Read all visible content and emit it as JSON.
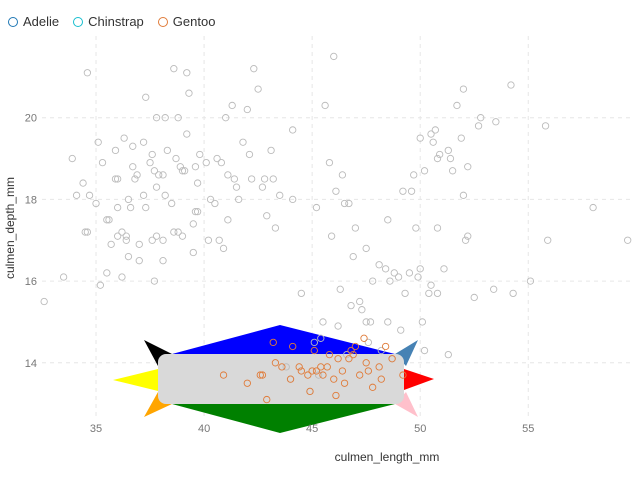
{
  "legend": {
    "items": [
      {
        "label": "Adelie",
        "color": "#1f77b4"
      },
      {
        "label": "Chinstrap",
        "color": "#17becf"
      },
      {
        "label": "Gentoo",
        "color": "#e07b39"
      }
    ]
  },
  "chart_data": {
    "type": "scatter",
    "xlabel": "culmen_length_mm",
    "ylabel": "culmen_depth_mm",
    "xlim": [
      32.5,
      59.8
    ],
    "ylim": [
      12.6,
      22.0
    ],
    "xticks": [
      35,
      40,
      45,
      50,
      55
    ],
    "yticks": [
      14,
      16,
      18,
      20
    ],
    "grid": true,
    "legend_position": "top-left",
    "point_color_other": "#bbbbbb",
    "series": [
      {
        "name": "Adelie",
        "color": "#1f77b4",
        "marker": "open-circle"
      },
      {
        "name": "Chinstrap",
        "color": "#17becf",
        "marker": "open-circle"
      },
      {
        "name": "Gentoo",
        "color": "#e07b39",
        "marker": "open-circle"
      }
    ],
    "points_grey": [
      [
        32.6,
        15.5
      ],
      [
        33.5,
        16.1
      ],
      [
        33.9,
        19.0
      ],
      [
        34.1,
        18.1
      ],
      [
        34.4,
        18.4
      ],
      [
        34.5,
        17.2
      ],
      [
        34.6,
        21.1
      ],
      [
        34.6,
        17.2
      ],
      [
        34.7,
        18.1
      ],
      [
        35.0,
        17.9
      ],
      [
        35.1,
        19.4
      ],
      [
        35.2,
        15.9
      ],
      [
        35.3,
        18.9
      ],
      [
        35.5,
        16.2
      ],
      [
        35.5,
        17.5
      ],
      [
        35.6,
        17.5
      ],
      [
        35.7,
        16.9
      ],
      [
        35.9,
        19.2
      ],
      [
        35.9,
        18.5
      ],
      [
        36.0,
        17.8
      ],
      [
        36.0,
        17.1
      ],
      [
        36.0,
        18.5
      ],
      [
        36.2,
        16.1
      ],
      [
        36.2,
        17.2
      ],
      [
        36.3,
        19.5
      ],
      [
        36.4,
        17.1
      ],
      [
        36.4,
        17.0
      ],
      [
        36.5,
        18.0
      ],
      [
        36.5,
        16.6
      ],
      [
        36.6,
        17.8
      ],
      [
        36.7,
        19.3
      ],
      [
        36.7,
        18.8
      ],
      [
        36.8,
        18.5
      ],
      [
        36.9,
        18.6
      ],
      [
        37.0,
        16.9
      ],
      [
        37.0,
        16.5
      ],
      [
        37.2,
        18.1
      ],
      [
        37.2,
        19.4
      ],
      [
        37.3,
        20.5
      ],
      [
        37.3,
        17.8
      ],
      [
        37.5,
        18.9
      ],
      [
        37.6,
        19.1
      ],
      [
        37.6,
        17.0
      ],
      [
        37.7,
        18.7
      ],
      [
        37.7,
        16.0
      ],
      [
        37.8,
        18.3
      ],
      [
        37.8,
        20.0
      ],
      [
        37.8,
        17.1
      ],
      [
        37.9,
        18.6
      ],
      [
        38.1,
        18.6
      ],
      [
        38.1,
        17.0
      ],
      [
        38.1,
        16.5
      ],
      [
        38.2,
        18.1
      ],
      [
        38.2,
        20.0
      ],
      [
        38.3,
        19.2
      ],
      [
        38.5,
        17.9
      ],
      [
        38.6,
        21.2
      ],
      [
        38.6,
        17.2
      ],
      [
        38.7,
        19.0
      ],
      [
        38.8,
        17.2
      ],
      [
        38.8,
        20.0
      ],
      [
        38.9,
        18.8
      ],
      [
        39.0,
        17.1
      ],
      [
        39.0,
        18.7
      ],
      [
        39.1,
        18.7
      ],
      [
        39.2,
        19.6
      ],
      [
        39.2,
        21.1
      ],
      [
        39.3,
        20.6
      ],
      [
        39.5,
        17.4
      ],
      [
        39.5,
        16.7
      ],
      [
        39.6,
        18.8
      ],
      [
        39.6,
        17.7
      ],
      [
        39.7,
        18.4
      ],
      [
        39.7,
        17.7
      ],
      [
        39.8,
        19.1
      ],
      [
        40.1,
        18.9
      ],
      [
        40.2,
        17.0
      ],
      [
        40.3,
        18.0
      ],
      [
        40.5,
        17.9
      ],
      [
        40.6,
        19.0
      ],
      [
        40.7,
        17.0
      ],
      [
        40.8,
        18.9
      ],
      [
        40.9,
        16.8
      ],
      [
        41.0,
        20.0
      ],
      [
        41.1,
        17.5
      ],
      [
        41.1,
        18.6
      ],
      [
        41.3,
        20.3
      ],
      [
        41.4,
        18.5
      ],
      [
        41.5,
        18.3
      ],
      [
        41.6,
        18.0
      ],
      [
        41.8,
        19.4
      ],
      [
        42.0,
        20.2
      ],
      [
        42.1,
        19.1
      ],
      [
        42.2,
        18.5
      ],
      [
        42.3,
        21.2
      ],
      [
        42.5,
        20.7
      ],
      [
        42.7,
        18.3
      ],
      [
        42.8,
        18.5
      ],
      [
        42.9,
        17.6
      ],
      [
        43.1,
        19.2
      ],
      [
        43.2,
        18.5
      ],
      [
        43.3,
        17.3
      ],
      [
        43.5,
        18.1
      ],
      [
        44.1,
        19.7
      ],
      [
        44.1,
        18.0
      ],
      [
        45.8,
        18.9
      ],
      [
        45.6,
        20.3
      ],
      [
        46.0,
        21.5
      ],
      [
        45.2,
        17.8
      ],
      [
        46.4,
        18.6
      ],
      [
        47.0,
        17.3
      ],
      [
        46.7,
        17.9
      ],
      [
        46.9,
        16.6
      ],
      [
        47.5,
        16.8
      ],
      [
        45.9,
        17.1
      ],
      [
        46.1,
        18.2
      ],
      [
        49.7,
        18.6
      ],
      [
        50.0,
        19.5
      ],
      [
        51.3,
        19.2
      ],
      [
        52.7,
        19.8
      ],
      [
        50.5,
        19.6
      ],
      [
        49.2,
        18.2
      ],
      [
        50.9,
        19.1
      ],
      [
        52.0,
        18.1
      ],
      [
        51.7,
        20.3
      ],
      [
        50.8,
        19.0
      ],
      [
        48.5,
        17.5
      ],
      [
        52.8,
        20.0
      ],
      [
        49.6,
        18.2
      ],
      [
        50.7,
        19.7
      ],
      [
        50.6,
        19.4
      ],
      [
        51.4,
        19.0
      ],
      [
        52.2,
        18.8
      ],
      [
        46.5,
        17.9
      ],
      [
        54.2,
        20.8
      ],
      [
        55.8,
        19.8
      ],
      [
        51.5,
        18.7
      ],
      [
        53.5,
        19.9
      ],
      [
        49.8,
        17.3
      ],
      [
        50.2,
        18.7
      ],
      [
        48.1,
        16.4
      ],
      [
        52.0,
        20.7
      ],
      [
        45.4,
        14.6
      ],
      [
        45.5,
        15.0
      ],
      [
        46.2,
        14.9
      ],
      [
        47.3,
        15.3
      ],
      [
        48.7,
        14.1
      ],
      [
        49.1,
        14.8
      ],
      [
        49.5,
        16.2
      ],
      [
        50.0,
        16.3
      ],
      [
        50.5,
        15.9
      ],
      [
        51.1,
        16.3
      ],
      [
        52.5,
        15.6
      ],
      [
        53.4,
        15.8
      ],
      [
        54.3,
        15.7
      ],
      [
        55.1,
        16.0
      ],
      [
        59.6,
        17.0
      ],
      [
        58.0,
        17.8
      ],
      [
        55.9,
        17.0
      ],
      [
        52.1,
        17.0
      ],
      [
        49.0,
        16.1
      ],
      [
        48.4,
        16.3
      ],
      [
        47.8,
        16.0
      ],
      [
        46.8,
        15.4
      ],
      [
        47.6,
        14.5
      ],
      [
        44.9,
        13.3
      ],
      [
        48.2,
        14.3
      ],
      [
        49.3,
        15.7
      ],
      [
        50.4,
        15.7
      ],
      [
        50.1,
        15.0
      ],
      [
        48.8,
        16.2
      ],
      [
        45.3,
        13.7
      ],
      [
        44.0,
        13.6
      ],
      [
        46.3,
        15.8
      ],
      [
        47.2,
        15.5
      ],
      [
        48.6,
        16.0
      ],
      [
        50.8,
        15.7
      ],
      [
        43.8,
        13.9
      ],
      [
        44.5,
        15.7
      ],
      [
        45.1,
        14.5
      ],
      [
        51.3,
        14.2
      ],
      [
        48.5,
        15.0
      ],
      [
        46.6,
        14.2
      ],
      [
        49.9,
        16.1
      ],
      [
        47.5,
        15.0
      ],
      [
        50.2,
        14.3
      ],
      [
        47.7,
        15.0
      ],
      [
        50.8,
        17.3
      ],
      [
        52.2,
        17.1
      ],
      [
        51.9,
        19.5
      ]
    ],
    "points_gentoo": [
      [
        45.1,
        14.3
      ],
      [
        43.3,
        14.0
      ],
      [
        44.0,
        13.6
      ],
      [
        44.4,
        13.9
      ],
      [
        45.8,
        14.2
      ],
      [
        46.1,
        13.2
      ],
      [
        46.5,
        13.5
      ],
      [
        47.2,
        13.7
      ],
      [
        47.5,
        14.0
      ],
      [
        48.1,
        13.9
      ],
      [
        48.4,
        14.4
      ],
      [
        46.8,
        14.3
      ],
      [
        45.0,
        13.8
      ],
      [
        44.8,
        13.7
      ],
      [
        46.2,
        14.1
      ],
      [
        47.4,
        14.6
      ],
      [
        45.5,
        13.7
      ],
      [
        46.4,
        13.8
      ],
      [
        47.8,
        13.4
      ],
      [
        40.9,
        13.7
      ],
      [
        42.6,
        13.7
      ],
      [
        42.7,
        13.7
      ],
      [
        43.6,
        13.9
      ],
      [
        44.9,
        13.3
      ],
      [
        45.4,
        13.9
      ],
      [
        46.9,
        14.2
      ],
      [
        47.0,
        14.4
      ],
      [
        48.2,
        13.6
      ],
      [
        48.7,
        14.1
      ],
      [
        49.2,
        13.7
      ],
      [
        43.2,
        14.5
      ],
      [
        42.9,
        13.1
      ],
      [
        44.5,
        13.8
      ],
      [
        45.7,
        13.9
      ],
      [
        46.0,
        13.6
      ],
      [
        46.7,
        14.1
      ],
      [
        47.6,
        13.8
      ],
      [
        45.2,
        13.8
      ],
      [
        44.1,
        14.4
      ],
      [
        42.0,
        13.5
      ]
    ]
  },
  "overlay": {
    "colors": {
      "center": "#d9d9d9",
      "top": "#0000ff",
      "bottom": "#008000",
      "left": "#ffff00",
      "right": "#ff0000",
      "top_left": "#000000",
      "top_right": "#4682b4",
      "bottom_left": "#ffa500",
      "bottom_right": "#ffc0cb"
    }
  }
}
